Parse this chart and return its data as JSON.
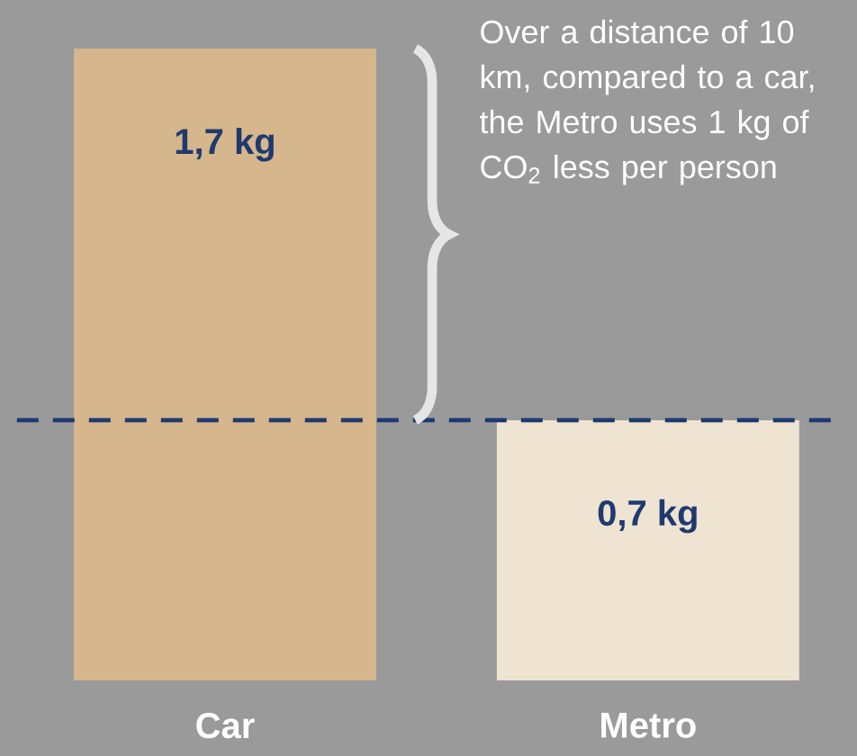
{
  "chart_data": {
    "type": "bar",
    "categories": [
      "Car",
      "Metro"
    ],
    "values": [
      1.7,
      0.7
    ],
    "colors": [
      "#d6b68c",
      "#efe3d2"
    ],
    "value_labels": [
      "1,7 kg",
      "0,7 kg"
    ],
    "ref_lines": [
      {
        "axis": "y",
        "value": 0.7,
        "color": "#1f3a70",
        "line_style": "dashed"
      }
    ],
    "annotations": [
      "Over a distance of 10 km, compared to a car, the Metro uses 1 kg of CO$_{2}$ less per person"
    ]
  }
}
